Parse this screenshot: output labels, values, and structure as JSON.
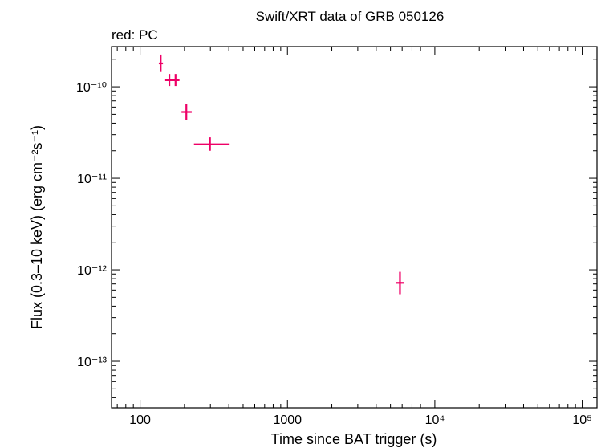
{
  "chart_data": {
    "type": "scatter",
    "title": "Swift/XRT data of GRB 050126",
    "subtitle": "red: PC",
    "xlabel": "Time since BAT trigger (s)",
    "ylabel": "Flux (0.3–10 keV) (erg cm⁻²s⁻¹)",
    "xscale": "log",
    "yscale": "log",
    "xlim": [
      64,
      126000
    ],
    "ylim": [
      3.1e-14,
      2.75e-10
    ],
    "x_ticks": [
      {
        "value": 100,
        "label": "100"
      },
      {
        "value": 1000,
        "label": "1000"
      },
      {
        "value": 10000,
        "label": "10⁴"
      },
      {
        "value": 100000,
        "label": "10⁵"
      }
    ],
    "y_ticks": [
      {
        "value": 1e-10,
        "label": "10⁻¹⁰"
      },
      {
        "value": 1e-11,
        "label": "10⁻¹¹"
      },
      {
        "value": 1e-12,
        "label": "10⁻¹²"
      },
      {
        "value": 1e-13,
        "label": "10⁻¹³"
      }
    ],
    "series": [
      {
        "color": "#ee0066",
        "points": [
          {
            "x": 138,
            "xerr": [
              134,
              143
            ],
            "y": 1.8e-10,
            "yerr": [
              1.45e-10,
              2.25e-10
            ]
          },
          {
            "x": 158,
            "xerr": [
              148,
              166
            ],
            "y": 1.18e-10,
            "yerr": [
              1.02e-10,
              1.38e-10
            ]
          },
          {
            "x": 174,
            "xerr": [
              166,
              185
            ],
            "y": 1.18e-10,
            "yerr": [
              1.02e-10,
              1.38e-10
            ]
          },
          {
            "x": 206,
            "xerr": [
              191,
              224
            ],
            "y": 5.3e-11,
            "yerr": [
              4.3e-11,
              6.5e-11
            ]
          },
          {
            "x": 298,
            "xerr": [
              232,
              405
            ],
            "y": 2.35e-11,
            "yerr": [
              2e-11,
              2.8e-11
            ]
          },
          {
            "x": 5800,
            "xerr": [
              5450,
              6150
            ],
            "y": 7.2e-13,
            "yerr": [
              5.4e-13,
              9.5e-13
            ]
          }
        ]
      }
    ]
  }
}
